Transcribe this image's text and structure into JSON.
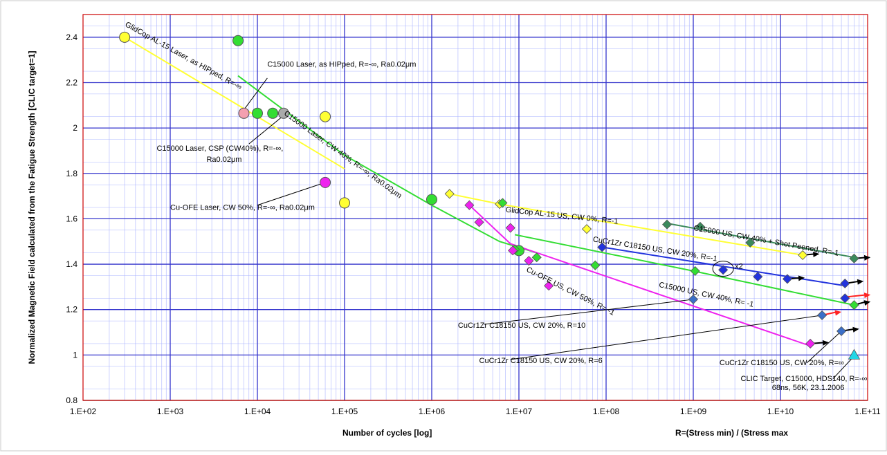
{
  "colors": {
    "grid_major": "#3333cc",
    "grid_minor": "#aab4ff",
    "plot_border": "#cc0000",
    "yellow": "#ffff33",
    "green": "#33dd33",
    "magenta": "#ee22ee",
    "blue": "#2233dd",
    "teal": "#3b8a5c",
    "steelblue": "#3b6fc8",
    "cyan": "#22d6e6",
    "pink": "#f4a0b0",
    "grey": "#aaaaaa",
    "black": "#000000",
    "red": "#ff2222"
  },
  "chart_data": {
    "type": "scatter",
    "x_scale": "log",
    "xlim": [
      100,
      100000000000
    ],
    "ylim": [
      0.8,
      2.5
    ],
    "grid": true,
    "xlabel": "Number of cycles [log]",
    "xlabel2": "R=(Stress min) / (Stress max",
    "ylabel": "Normalized Magnetic Field calculated from the Fatigue Strength  [CLIC target=1]",
    "x_ticks": [
      "1.E+02",
      "1.E+03",
      "1.E+04",
      "1.E+05",
      "1.E+06",
      "1.E+07",
      "1.E+08",
      "1.E+09",
      "1.E+10",
      "1.E+11"
    ],
    "y_ticks": [
      "0.8",
      "1",
      "1.2",
      "1.4",
      "1.6",
      "1.8",
      "2",
      "2.2",
      "2.4"
    ],
    "series": [
      {
        "marker": "circle",
        "color": "yellow",
        "points": [
          [
            300,
            2.4
          ],
          [
            60000,
            2.05
          ],
          [
            100000,
            1.67
          ]
        ]
      },
      {
        "marker": "circle",
        "color": "green",
        "points": [
          [
            6000,
            2.385
          ],
          [
            10000,
            2.065
          ],
          [
            15000,
            2.065
          ],
          [
            1000000,
            1.685
          ],
          [
            10000000,
            1.46
          ]
        ]
      },
      {
        "marker": "circle",
        "color": "pink",
        "points": [
          [
            7000,
            2.065
          ]
        ]
      },
      {
        "marker": "circle",
        "color": "grey",
        "points": [
          [
            20000,
            2.065
          ]
        ]
      },
      {
        "marker": "circle",
        "color": "magenta",
        "points": [
          [
            60000,
            1.76
          ]
        ]
      },
      {
        "marker": "diamond",
        "color": "yellow",
        "points": [
          [
            1600000,
            1.71
          ],
          [
            6000000,
            1.665
          ],
          [
            60000000,
            1.555
          ],
          [
            18000000000,
            1.44
          ]
        ]
      },
      {
        "marker": "diamond",
        "color": "green",
        "points": [
          [
            6500000,
            1.67
          ],
          [
            9000000,
            1.465
          ],
          [
            16000000,
            1.43
          ],
          [
            75000000,
            1.395
          ],
          [
            1050000000,
            1.37
          ],
          [
            70000000000,
            1.22
          ]
        ]
      },
      {
        "marker": "diamond",
        "color": "magenta",
        "points": [
          [
            2700000,
            1.66
          ],
          [
            3500000,
            1.585
          ],
          [
            8000000,
            1.56
          ],
          [
            8500000,
            1.46
          ],
          [
            13000000,
            1.415
          ],
          [
            22000000,
            1.305
          ],
          [
            22000000000,
            1.05
          ]
        ]
      },
      {
        "marker": "diamond",
        "color": "blue",
        "points": [
          [
            90000000,
            1.475
          ],
          [
            2200000000,
            1.375
          ],
          [
            5500000000,
            1.345
          ],
          [
            12000000000,
            1.335
          ],
          [
            55000000000,
            1.315
          ],
          [
            55000000000,
            1.25
          ]
        ]
      },
      {
        "marker": "diamond",
        "color": "steelblue",
        "points": [
          [
            1000000000,
            1.245
          ],
          [
            30000000000,
            1.175
          ],
          [
            50000000000,
            1.105
          ]
        ]
      },
      {
        "marker": "diamond",
        "color": "teal",
        "points": [
          [
            500000000,
            1.575
          ],
          [
            1200000000,
            1.565
          ],
          [
            4500000000,
            1.495
          ],
          [
            70000000000,
            1.425
          ]
        ]
      },
      {
        "marker": "triangle",
        "color": "cyan",
        "points": [
          [
            70000000000,
            1.0
          ]
        ]
      }
    ],
    "trend_lines": [
      {
        "color": "yellow",
        "points": [
          [
            300,
            2.4
          ],
          [
            100000,
            1.82
          ]
        ]
      },
      {
        "color": "green",
        "points": [
          [
            6000,
            2.23
          ],
          [
            100000,
            1.88
          ],
          [
            1000000,
            1.66
          ],
          [
            6000000,
            1.5
          ],
          [
            16000000,
            1.45
          ]
        ]
      },
      {
        "color": "yellow",
        "points": [
          [
            1600000,
            1.71
          ],
          [
            6000000,
            1.665
          ],
          [
            18000000000,
            1.44
          ]
        ]
      },
      {
        "color": "teal",
        "points": [
          [
            500000000,
            1.58
          ],
          [
            70000000000,
            1.43
          ]
        ]
      },
      {
        "color": "blue",
        "points": [
          [
            90000000,
            1.475
          ],
          [
            55000000000,
            1.305
          ]
        ]
      },
      {
        "color": "green",
        "points": [
          [
            9000000,
            1.53
          ],
          [
            1000000000,
            1.37
          ],
          [
            70000000000,
            1.22
          ]
        ]
      },
      {
        "color": "magenta",
        "points": [
          [
            2700000,
            1.66
          ],
          [
            8000000,
            1.49
          ],
          [
            22000000000,
            1.04
          ]
        ]
      }
    ],
    "run_out_arrows": [
      {
        "color": "black",
        "from": [
          18000000000,
          1.44
        ],
        "to": [
          28000000000,
          1.445
        ]
      },
      {
        "color": "black",
        "from": [
          70000000000,
          1.425
        ],
        "to": [
          108000000000,
          1.43
        ]
      },
      {
        "color": "black",
        "from": [
          12000000000,
          1.335
        ],
        "to": [
          19000000000,
          1.34
        ]
      },
      {
        "color": "black",
        "from": [
          55000000000,
          1.315
        ],
        "to": [
          90000000000,
          1.325
        ]
      },
      {
        "color": "red",
        "from": [
          55000000000,
          1.255
        ],
        "to": [
          108000000000,
          1.265
        ]
      },
      {
        "color": "black",
        "from": [
          70000000000,
          1.22
        ],
        "to": [
          108000000000,
          1.235
        ]
      },
      {
        "color": "red",
        "from": [
          30000000000,
          1.175
        ],
        "to": [
          50000000000,
          1.19
        ]
      },
      {
        "color": "black",
        "from": [
          50000000000,
          1.105
        ],
        "to": [
          80000000000,
          1.115
        ]
      },
      {
        "color": "black",
        "from": [
          22000000000,
          1.05
        ],
        "to": [
          36000000000,
          1.055
        ]
      }
    ],
    "annotations": [
      {
        "id": "glidcop-laser",
        "text": "GlidCop AL-15 Laser, as HIPped, R=-∞",
        "at": [
          300,
          2.45
        ],
        "rotate": 29
      },
      {
        "id": "c15000-hipped",
        "text": "C15000 Laser, as HIPped, R=-∞, Ra0.02μm",
        "at": [
          13000,
          2.27
        ],
        "rotate": 0
      },
      {
        "id": "c15000-cw40-laser",
        "text": "C15000 Laser, CW 40%, R=-∞, Ra0.02μm",
        "at": [
          20000,
          2.06
        ],
        "rotate": 36
      },
      {
        "id": "c15000-csp",
        "text": "C15000 Laser, CSP (CW40%), R=-∞,",
        "text2": "Ra0.02μm",
        "at": [
          700,
          1.9
        ],
        "rotate": 0
      },
      {
        "id": "cu-ofe-laser",
        "text": "Cu-OFE Laser, CW 50%, R=-∞, Ra0.02μm",
        "at": [
          1000,
          1.64
        ],
        "rotate": 0
      },
      {
        "id": "glidcop-us",
        "text": "GlidCop AL-15 US, CW 0%, R=-1",
        "at": [
          7000000,
          1.63
        ],
        "rotate": 6
      },
      {
        "id": "c15000-shot",
        "text": "C15000 US, CW 40% + Shot Peened, R=-1",
        "at": [
          1000000000,
          1.55
        ],
        "rotate": 10
      },
      {
        "id": "cucrzr-r-1",
        "text": "CuCr1Zr C18150 US, CW 20%, R=-1",
        "at": [
          70000000,
          1.5
        ],
        "rotate": 9
      },
      {
        "id": "x2",
        "text": "x2",
        "at": [
          3000000000,
          1.38
        ],
        "rotate": 0
      },
      {
        "id": "c15000-us",
        "text": "C15000 US, CW 40%, R= -1",
        "at": [
          400000000,
          1.3
        ],
        "rotate": 12
      },
      {
        "id": "cu-ofe-us",
        "text": "Cu-OFE US, CW 50%, R= -1",
        "at": [
          12000000,
          1.37
        ],
        "rotate": 27
      },
      {
        "id": "cucrzr-r10",
        "text": "CuCr1Zr C18150 US, CW 20%, R=10",
        "at": [
          2000000,
          1.12
        ],
        "rotate": 0
      },
      {
        "id": "cucrzr-r6",
        "text": "CuCr1Zr C18150 US, CW 20%, R=6",
        "at": [
          3500000,
          0.965
        ],
        "rotate": 0
      },
      {
        "id": "cucrzr-rinf",
        "text": "CuCr1Zr C18150 US, CW 20%, R=∞",
        "at": [
          2000000000,
          0.955
        ],
        "rotate": 0
      },
      {
        "id": "clic-target",
        "text": "CLIC Target, C15000, HDS140, R=-∞",
        "at": [
          3500000000,
          0.885
        ],
        "rotate": 0
      },
      {
        "id": "clic-target-2",
        "text": "68ns, 56K, 23.1.2006",
        "at": [
          8000000000,
          0.845
        ],
        "rotate": 0
      }
    ],
    "callout_lines": [
      {
        "from": [
          13000,
          2.22
        ],
        "to": [
          7000,
          2.08
        ]
      },
      {
        "from": [
          8000,
          1.93
        ],
        "to": [
          20000,
          2.055
        ]
      },
      {
        "from": [
          10000,
          1.66
        ],
        "to": [
          55000,
          1.755
        ]
      },
      {
        "from": [
          4000000,
          1.135
        ],
        "to": [
          1000000000,
          1.245
        ]
      },
      {
        "from": [
          8000000,
          0.98
        ],
        "to": [
          30000000000,
          1.175
        ]
      },
      {
        "from": [
          20000000000,
          0.965
        ],
        "to": [
          50000000000,
          1.105
        ]
      },
      {
        "from": [
          40000000000,
          0.895
        ],
        "to": [
          70000000000,
          0.995
        ]
      }
    ],
    "ellipse": {
      "at": [
        2200000000,
        1.38
      ]
    }
  }
}
